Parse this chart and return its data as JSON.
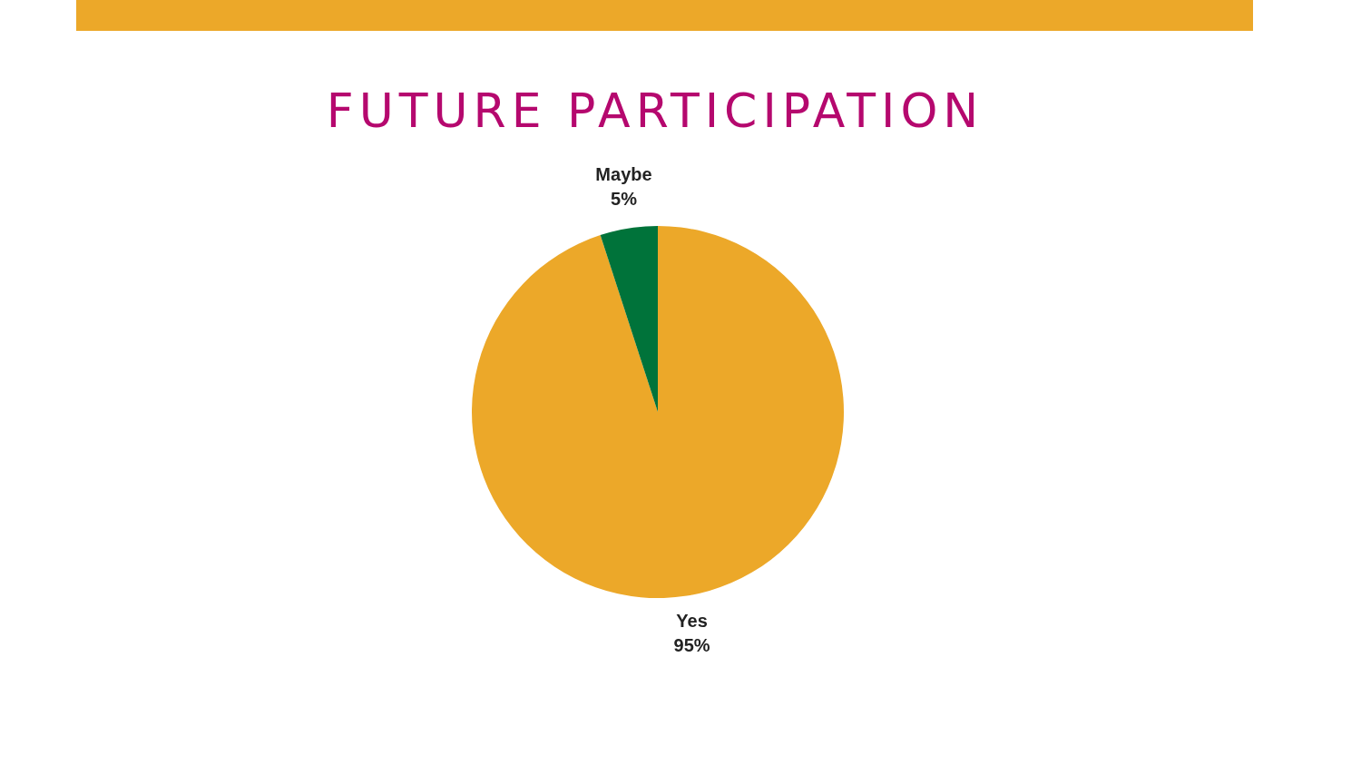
{
  "chart_data": {
    "type": "pie",
    "title": "FUTURE PARTICIPATION",
    "categories": [
      "Yes",
      "Maybe"
    ],
    "values": [
      95,
      5
    ],
    "colors": [
      "#eca829",
      "#00733a"
    ],
    "value_labels": [
      "95%",
      "5%"
    ]
  }
}
